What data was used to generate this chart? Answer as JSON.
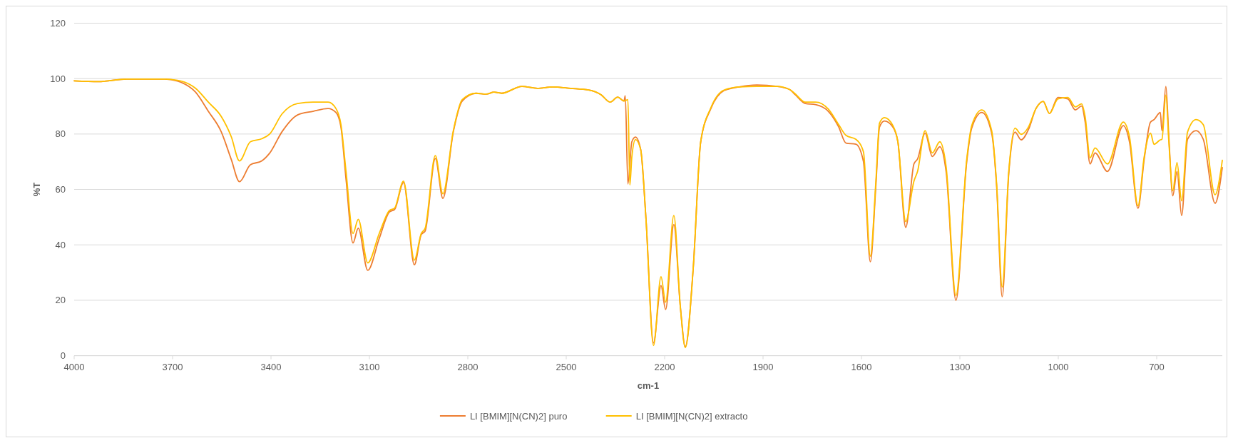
{
  "chart_data": {
    "type": "line",
    "xlabel": "cm-1",
    "ylabel": "%T",
    "xlim": [
      4000,
      500
    ],
    "xticks": [
      4000,
      3700,
      3400,
      3100,
      2800,
      2500,
      2200,
      1900,
      1600,
      1300,
      1000,
      700
    ],
    "ylim": [
      0,
      120
    ],
    "yticks": [
      0,
      20,
      40,
      60,
      80,
      100,
      120
    ],
    "grid": "y",
    "legend": "bottom",
    "line_style": "solid",
    "marker": "none",
    "series": [
      {
        "name": "LI [BMIM][N(CN)2] puro",
        "color": "#ed7d31",
        "x": [
          4000,
          3926,
          3840,
          3724,
          3685,
          3630,
          3591,
          3552,
          3521,
          3496,
          3463,
          3428,
          3404,
          3366,
          3319,
          3272,
          3226,
          3202,
          3187,
          3171,
          3150,
          3134,
          3105,
          3070,
          3039,
          3023,
          2996,
          2963,
          2942,
          2930,
          2899,
          2876,
          2844,
          2817,
          2775,
          2744,
          2720,
          2697,
          2635,
          2588,
          2541,
          2487,
          2432,
          2394,
          2366,
          2343,
          2324,
          2320,
          2312,
          2300,
          2289,
          2273,
          2257,
          2234,
          2211,
          2197,
          2172,
          2152,
          2137,
          2113,
          2090,
          2059,
          2020,
          1973,
          1919,
          1857,
          1818,
          1802,
          1771,
          1740,
          1701,
          1670,
          1647,
          1617,
          1594,
          1573,
          1556,
          1545,
          1530,
          1504,
          1489,
          1465,
          1440,
          1429,
          1406,
          1384,
          1361,
          1342,
          1312,
          1279,
          1264,
          1233,
          1203,
          1188,
          1171,
          1151,
          1132,
          1113,
          1091,
          1068,
          1046,
          1027,
          1001,
          971,
          948,
          929,
          918,
          903,
          888,
          850,
          802,
          783,
          757,
          738,
          719,
          708,
          689,
          684,
          672,
          663,
          651,
          638,
          624,
          606,
          580,
          558,
          522,
          500
        ],
        "values": [
          99.2,
          98.9,
          99.8,
          99.8,
          99.1,
          95.1,
          88.2,
          80.9,
          70.8,
          62.8,
          68.9,
          70.3,
          73.1,
          80.9,
          86.9,
          88.2,
          89.2,
          87.8,
          82.7,
          63.4,
          40.7,
          46,
          30.8,
          42.3,
          51.9,
          52.8,
          62.5,
          32.8,
          43.7,
          45,
          71.2,
          56.8,
          80.9,
          91.9,
          94.7,
          94.4,
          95.1,
          94.7,
          97.2,
          96.5,
          97,
          96.5,
          95.9,
          94.2,
          91.5,
          93.3,
          91.9,
          93.8,
          62,
          77.2,
          78.9,
          74.4,
          49.6,
          4.6,
          25.3,
          16.7,
          47.3,
          17.5,
          3.2,
          31.3,
          77.2,
          89.2,
          95.6,
          97,
          97.7,
          97.2,
          96,
          94.2,
          91,
          90.6,
          88.2,
          82.7,
          76.7,
          76.3,
          70.1,
          33.9,
          61.5,
          82.5,
          84.7,
          82.5,
          77.2,
          46.3,
          69.2,
          71,
          80.3,
          71.9,
          75.4,
          66.5,
          20,
          70.1,
          82.1,
          87.8,
          80.3,
          61.2,
          21.3,
          65.7,
          80.7,
          77.9,
          81.6,
          89.2,
          91.8,
          87.4,
          93.2,
          92.7,
          88.7,
          90.1,
          84.3,
          69.2,
          73.2,
          66.5,
          83,
          77.2,
          53.2,
          71,
          84.3,
          85.2,
          87.8,
          81.2,
          97.2,
          79,
          57.7,
          66.5,
          50.6,
          78.1,
          81.2,
          78.1,
          55,
          67.9
        ]
      },
      {
        "name": "LI [BMIM][N(CN)2] extracto",
        "color": "#ffc000",
        "x": [
          4000,
          3926,
          3840,
          3724,
          3685,
          3630,
          3591,
          3552,
          3521,
          3496,
          3463,
          3428,
          3404,
          3366,
          3319,
          3272,
          3226,
          3202,
          3187,
          3171,
          3150,
          3134,
          3105,
          3070,
          3039,
          3023,
          2996,
          2963,
          2942,
          2930,
          2899,
          2876,
          2844,
          2817,
          2775,
          2744,
          2720,
          2697,
          2635,
          2588,
          2541,
          2487,
          2432,
          2394,
          2366,
          2343,
          2324,
          2312,
          2306,
          2300,
          2289,
          2273,
          2257,
          2234,
          2211,
          2197,
          2172,
          2152,
          2137,
          2113,
          2090,
          2059,
          2020,
          1973,
          1919,
          1857,
          1818,
          1802,
          1771,
          1740,
          1701,
          1670,
          1647,
          1617,
          1594,
          1573,
          1556,
          1545,
          1530,
          1504,
          1489,
          1465,
          1440,
          1429,
          1406,
          1384,
          1361,
          1342,
          1312,
          1279,
          1264,
          1233,
          1203,
          1188,
          1171,
          1151,
          1132,
          1113,
          1091,
          1068,
          1046,
          1027,
          1001,
          971,
          948,
          929,
          918,
          903,
          888,
          850,
          802,
          783,
          757,
          738,
          719,
          708,
          689,
          684,
          672,
          663,
          651,
          638,
          624,
          606,
          580,
          558,
          522,
          500
        ],
        "values": [
          99.2,
          98.9,
          99.8,
          99.8,
          99.4,
          96.5,
          91.5,
          86.4,
          79,
          70.3,
          77.2,
          78.3,
          80,
          87.3,
          91,
          91.5,
          91.5,
          89.2,
          83.6,
          66.2,
          44.1,
          49.2,
          33.5,
          44.1,
          52.4,
          53.3,
          63,
          34.5,
          44.1,
          46,
          72.2,
          58.4,
          81.3,
          92.4,
          94.7,
          94.4,
          95.1,
          94.7,
          97.2,
          96.5,
          97,
          96.5,
          95.9,
          94.2,
          91.5,
          93.3,
          91.9,
          92.4,
          61.6,
          71.7,
          78,
          74.4,
          49.6,
          3.7,
          28.5,
          19.3,
          50.6,
          17.5,
          2.9,
          31.3,
          77.2,
          89.5,
          95.8,
          97,
          97.2,
          97.2,
          96,
          94.5,
          91.5,
          91.5,
          89,
          83.5,
          79.5,
          78.1,
          73.6,
          35.9,
          63,
          83.9,
          85.9,
          83,
          77.2,
          48.4,
          63,
          66.5,
          81.2,
          73.2,
          77.2,
          68.3,
          21.7,
          71,
          83,
          88.7,
          81.2,
          62.1,
          24.8,
          66.5,
          82.1,
          79.9,
          82.5,
          89.2,
          91.8,
          87.4,
          92.7,
          93.2,
          89.8,
          90.9,
          86.2,
          71.4,
          75,
          69.2,
          84.3,
          79,
          54.1,
          71.9,
          80.3,
          76.3,
          77.9,
          78.1,
          94.1,
          77.2,
          59.5,
          69.7,
          55.9,
          80.7,
          85.2,
          83.4,
          58.1,
          70.5
        ]
      }
    ]
  }
}
